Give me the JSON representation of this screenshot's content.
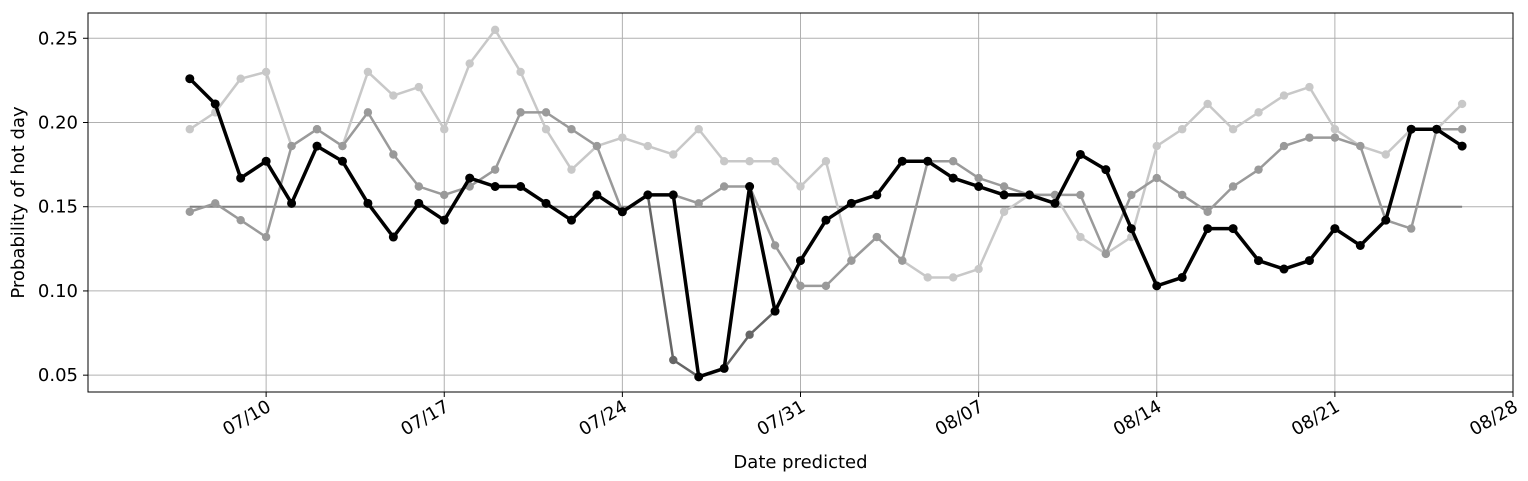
{
  "chart_data": {
    "type": "line",
    "xlabel": "Date predicted",
    "ylabel": "Probability of hot day",
    "x_tick_labels": [
      "07/10",
      "07/17",
      "07/24",
      "07/31",
      "08/07",
      "08/14",
      "08/21",
      "08/28"
    ],
    "y_tick_labels": [
      "0.05",
      "0.10",
      "0.15",
      "0.20",
      "0.25"
    ],
    "y_ticks": [
      0.05,
      0.1,
      0.15,
      0.2,
      0.25
    ],
    "ylim": [
      0.04,
      0.265
    ],
    "xlim": [
      "2023-07-03",
      "2023-08-28"
    ],
    "grid": true,
    "x": [
      "07/07",
      "07/08",
      "07/09",
      "07/10",
      "07/11",
      "07/12",
      "07/13",
      "07/14",
      "07/15",
      "07/16",
      "07/17",
      "07/18",
      "07/19",
      "07/20",
      "07/21",
      "07/22",
      "07/23",
      "07/24",
      "07/25",
      "07/26",
      "07/27",
      "07/28",
      "07/29",
      "07/30",
      "07/31",
      "08/01",
      "08/02",
      "08/03",
      "08/04",
      "08/05",
      "08/06",
      "08/07",
      "08/08",
      "08/09",
      "08/10",
      "08/11",
      "08/12",
      "08/13",
      "08/14",
      "08/15",
      "08/16",
      "08/17",
      "08/18",
      "08/19",
      "08/20",
      "08/21",
      "08/22",
      "08/23",
      "08/24",
      "08/25",
      "08/26"
    ],
    "reference": {
      "value": 0.15,
      "color": "#808080"
    },
    "series": [
      {
        "color": "#c8c8c8",
        "values": [
          0.196,
          0.206,
          0.226,
          0.23,
          0.186,
          0.196,
          0.186,
          0.23,
          0.216,
          0.221,
          0.196,
          0.235,
          0.255,
          0.23,
          0.196,
          0.172,
          0.186,
          0.191,
          0.186,
          0.181,
          0.196,
          0.177,
          0.177,
          0.177,
          0.162,
          0.177,
          0.118,
          0.132,
          0.118,
          0.108,
          0.108,
          0.113,
          0.147,
          0.157,
          0.157,
          0.132,
          0.122,
          0.132,
          0.186,
          0.196,
          0.211,
          0.196,
          0.206,
          0.216,
          0.221,
          0.196,
          0.186,
          0.181,
          0.196,
          0.196,
          0.211
        ]
      },
      {
        "color": "#9a9a9a",
        "values": [
          0.147,
          0.152,
          0.142,
          0.132,
          0.186,
          0.196,
          0.186,
          0.206,
          0.181,
          0.162,
          0.157,
          0.162,
          0.172,
          0.206,
          0.206,
          0.196,
          0.186,
          0.147,
          0.157,
          0.157,
          0.152,
          0.162,
          0.162,
          0.127,
          0.103,
          0.103,
          0.118,
          0.132,
          0.118,
          0.177,
          0.177,
          0.167,
          0.162,
          0.157,
          0.157,
          0.157,
          0.122,
          0.157,
          0.167,
          0.157,
          0.147,
          0.162,
          0.172,
          0.186,
          0.191,
          0.191,
          0.186,
          0.142,
          0.137,
          0.196,
          0.196
        ]
      },
      {
        "color": "#666666",
        "values": [
          0.226,
          0.211,
          0.167,
          0.177,
          0.152,
          0.186,
          0.177,
          0.152,
          0.132,
          0.152,
          0.142,
          0.167,
          0.162,
          0.162,
          0.152,
          0.142,
          0.157,
          0.147,
          0.157,
          0.059,
          0.049,
          0.054,
          0.074,
          0.088,
          0.118,
          0.142,
          0.152,
          0.157,
          0.177,
          0.177,
          0.167,
          0.162,
          0.157,
          0.157,
          0.152,
          0.181,
          0.172,
          0.137,
          0.103,
          0.108,
          0.137,
          0.137,
          0.118,
          0.113,
          0.118,
          0.137,
          0.127,
          0.142,
          0.196,
          0.196,
          0.186
        ]
      },
      {
        "color": "#000000",
        "values": [
          0.226,
          0.211,
          0.167,
          0.177,
          0.152,
          0.186,
          0.177,
          0.152,
          0.132,
          0.152,
          0.142,
          0.167,
          0.162,
          0.162,
          0.152,
          0.142,
          0.157,
          0.147,
          0.157,
          0.157,
          0.049,
          0.054,
          0.162,
          0.088,
          0.118,
          0.142,
          0.152,
          0.157,
          0.177,
          0.177,
          0.167,
          0.162,
          0.157,
          0.157,
          0.152,
          0.181,
          0.172,
          0.137,
          0.103,
          0.108,
          0.137,
          0.137,
          0.118,
          0.113,
          0.118,
          0.137,
          0.127,
          0.142,
          0.196,
          0.196,
          0.186
        ]
      }
    ]
  }
}
